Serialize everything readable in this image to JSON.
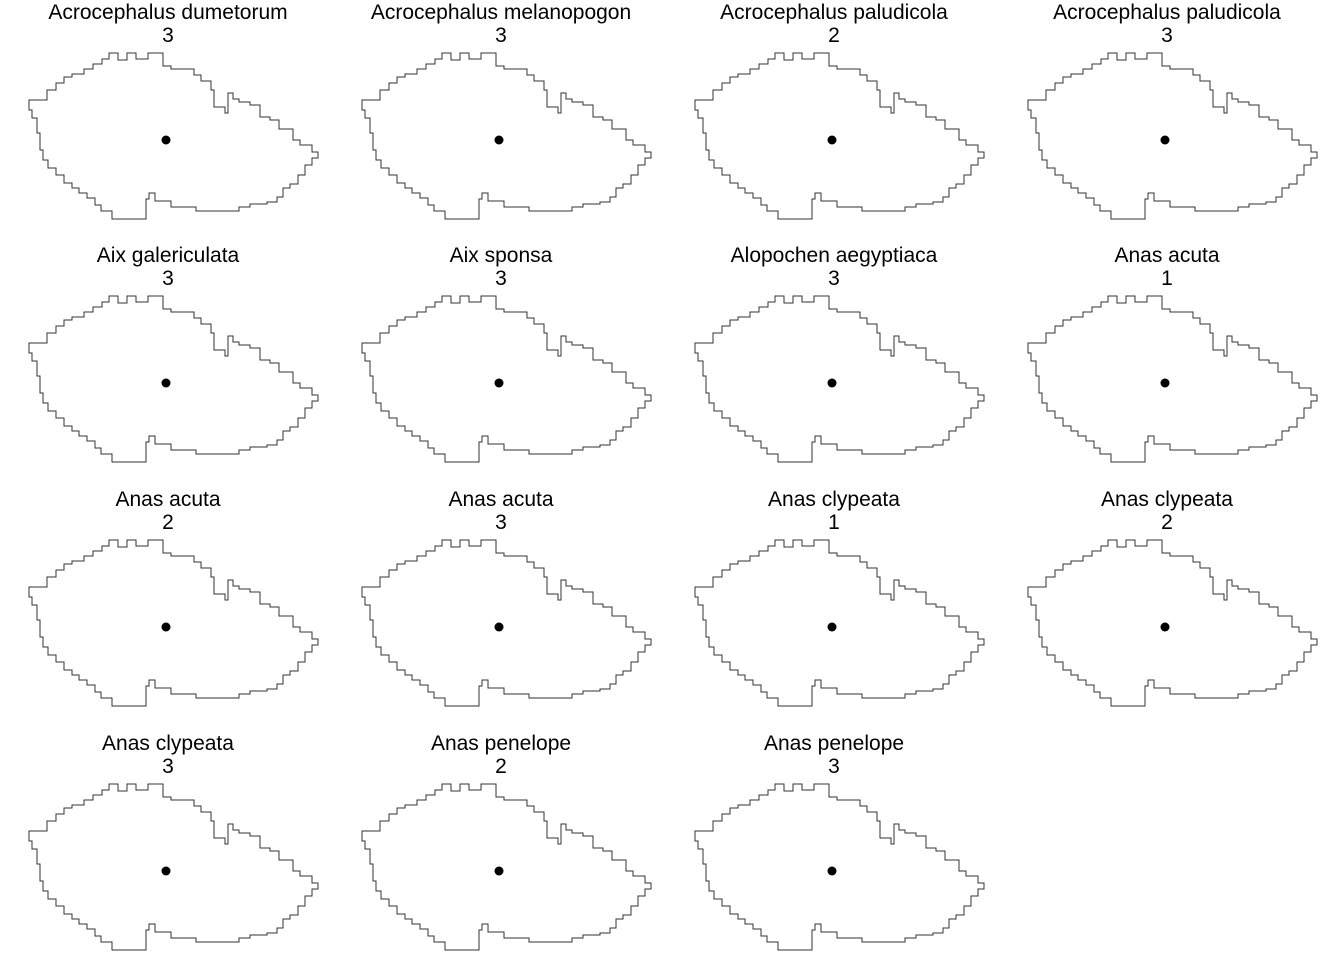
{
  "map": {
    "outline_color": "#333333",
    "point_color": "#000000",
    "point_icon": "dot-marker",
    "columns": 4
  },
  "panels": [
    {
      "species": "Acrocephalus dumetorum",
      "value": "3"
    },
    {
      "species": "Acrocephalus melanopogon",
      "value": "3"
    },
    {
      "species": "Acrocephalus paludicola",
      "value": "2"
    },
    {
      "species": "Acrocephalus paludicola",
      "value": "3"
    },
    {
      "species": "Aix galericulata",
      "value": "3"
    },
    {
      "species": "Aix sponsa",
      "value": "3"
    },
    {
      "species": "Alopochen aegyptiaca",
      "value": "3"
    },
    {
      "species": "Anas acuta",
      "value": "1"
    },
    {
      "species": "Anas acuta",
      "value": "2"
    },
    {
      "species": "Anas acuta",
      "value": "3"
    },
    {
      "species": "Anas clypeata",
      "value": "1"
    },
    {
      "species": "Anas clypeata",
      "value": "2"
    },
    {
      "species": "Anas clypeata",
      "value": "3"
    },
    {
      "species": "Anas penelope",
      "value": "2"
    },
    {
      "species": "Anas penelope",
      "value": "3"
    }
  ]
}
